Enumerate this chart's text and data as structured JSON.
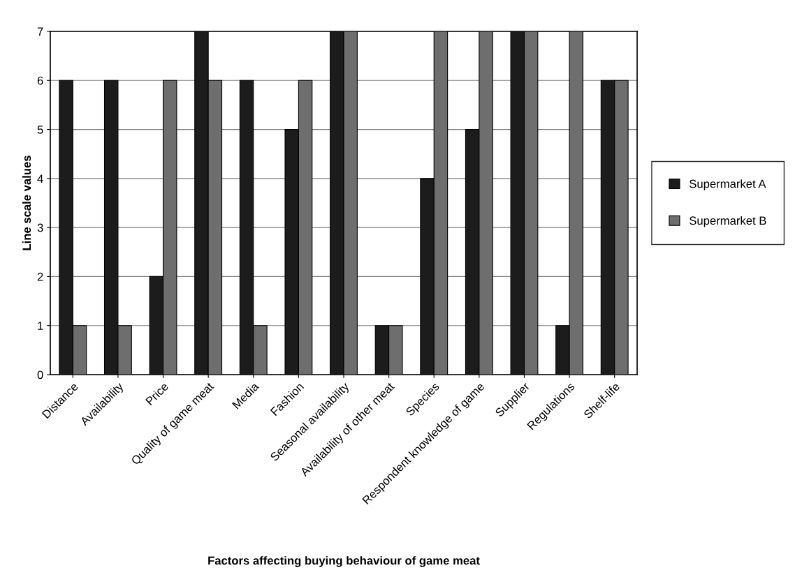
{
  "chart_data": {
    "type": "bar",
    "xlabel": "Factors affecting buying behaviour of game meat",
    "ylabel": "Line scale values",
    "categories": [
      "Distance",
      "Availability",
      "Price",
      "Quality of game meat",
      "Media",
      "Fashion",
      "Seasonal availability",
      "Availability of other meat",
      "Species",
      "Respondent knowledge of game",
      "Supplier",
      "Regulations",
      "Shelf-life"
    ],
    "series": [
      {
        "name": "Supermarket A",
        "color": "#1c1c1c",
        "values": [
          6,
          6,
          2,
          7,
          6,
          5,
          7,
          1,
          4,
          5,
          7,
          1,
          6
        ]
      },
      {
        "name": "Supermarket B",
        "color": "#6e6e6e",
        "values": [
          1,
          1,
          6,
          6,
          1,
          6,
          7,
          1,
          7,
          7,
          7,
          7,
          6
        ]
      }
    ],
    "ylim": [
      0,
      7
    ],
    "yticks": [
      0,
      1,
      2,
      3,
      4,
      5,
      6,
      7
    ],
    "grid": "y",
    "legend": "right"
  }
}
